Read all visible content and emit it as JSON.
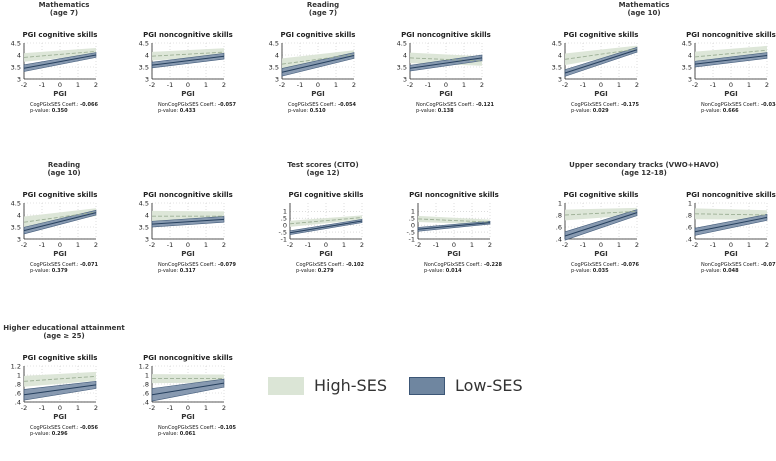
{
  "colors": {
    "high_band": "#dbe5d6",
    "high_line": "#9caf95",
    "low_band": "#8295ad",
    "low_edge": "#3c5676",
    "low_line": "#26405e",
    "grid": "#c8c8c8"
  },
  "legend": {
    "high": "High-SES",
    "low": "Low-SES"
  },
  "chart_data": [
    {
      "group_title": [
        "Mathematics",
        "(age 7)"
      ],
      "xlabel": "PGI",
      "ylim": [
        3,
        4.5
      ],
      "yticks": [
        "3",
        "3.5",
        "4",
        "4.5"
      ],
      "panels": [
        {
          "title": "PGI cognitive skills",
          "coef_label": "CogPGIxSES Coeff.: ",
          "coef": "-0.066",
          "pvalue_label": "p-value: ",
          "pvalue": "0.350",
          "high": {
            "y0": 3.9,
            "y1": 4.15,
            "w0": 0.18,
            "w1": 0.14
          },
          "low": {
            "y0": 3.45,
            "y1": 4.0,
            "w0": 0.14,
            "w1": 0.1
          }
        },
        {
          "title": "PGI noncognitive skills",
          "coef_label": "NonCogPGIxSES Coeff.: ",
          "coef": "-0.057",
          "pvalue_label": "p-value: ",
          "pvalue": "0.433",
          "high": {
            "y0": 3.95,
            "y1": 4.12,
            "w0": 0.18,
            "w1": 0.16
          },
          "low": {
            "y0": 3.58,
            "y1": 3.95,
            "w0": 0.12,
            "w1": 0.12
          }
        }
      ]
    },
    {
      "group_title": [
        "Reading",
        "(age 7)"
      ],
      "xlabel": "PGI",
      "ylim": [
        3,
        4.5
      ],
      "yticks": [
        "3",
        "3.5",
        "4",
        "4.5"
      ],
      "panels": [
        {
          "title": "PGI cognitive skills",
          "coef_label": "CogPGIxSES Coeff.: ",
          "coef": "-0.054",
          "pvalue_label": "p-value: ",
          "pvalue": "0.510",
          "high": {
            "y0": 3.62,
            "y1": 4.02,
            "w0": 0.24,
            "w1": 0.18
          },
          "low": {
            "y0": 3.28,
            "y1": 3.98,
            "w0": 0.16,
            "w1": 0.12
          }
        },
        {
          "title": "PGI noncognitive skills",
          "coef_label": "NonCogPGIxSES Coeff.: ",
          "coef": "-0.121",
          "pvalue_label": "p-value: ",
          "pvalue": "0.138",
          "high": {
            "y0": 3.88,
            "y1": 3.75,
            "w0": 0.22,
            "w1": 0.2
          },
          "low": {
            "y0": 3.45,
            "y1": 3.88,
            "w0": 0.12,
            "w1": 0.12
          }
        }
      ]
    },
    {
      "group_title": [
        "Mathematics",
        "(age 10)"
      ],
      "xlabel": "PGI",
      "ylim": [
        3,
        4.5
      ],
      "yticks": [
        "3",
        "3.5",
        "4",
        "4.5"
      ],
      "panels": [
        {
          "title": "PGI cognitive skills",
          "coef_label": "CogPGIxSES Coeff.: ",
          "coef": "-0.175",
          "pvalue_label": "p-value: ",
          "pvalue": "0.029",
          "high": {
            "y0": 3.82,
            "y1": 4.25,
            "w0": 0.24,
            "w1": 0.14
          },
          "low": {
            "y0": 3.25,
            "y1": 4.22,
            "w0": 0.14,
            "w1": 0.1
          }
        },
        {
          "title": "PGI noncognitive skills",
          "coef_label": "NonCogPGIxSES Coeff.: ",
          "coef": "-0.034",
          "pvalue_label": "p-value: ",
          "pvalue": "0.666",
          "high": {
            "y0": 3.92,
            "y1": 4.2,
            "w0": 0.22,
            "w1": 0.18
          },
          "low": {
            "y0": 3.62,
            "y1": 3.98,
            "w0": 0.12,
            "w1": 0.12
          }
        }
      ]
    },
    {
      "group_title": [
        "Reading",
        "(age 10)"
      ],
      "xlabel": "PGI",
      "ylim": [
        3,
        4.5
      ],
      "yticks": [
        "3",
        "3.5",
        "4",
        "4.5"
      ],
      "panels": [
        {
          "title": "PGI cognitive skills",
          "coef_label": "CogPGIxSES Coeff.: ",
          "coef": "-0.071",
          "pvalue_label": "p-value: ",
          "pvalue": "0.379",
          "high": {
            "y0": 3.7,
            "y1": 4.12,
            "w0": 0.24,
            "w1": 0.16
          },
          "low": {
            "y0": 3.35,
            "y1": 4.1,
            "w0": 0.14,
            "w1": 0.1
          }
        },
        {
          "title": "PGI noncognitive skills",
          "coef_label": "NonCogPGIxSES Coeff.: ",
          "coef": "-0.079",
          "pvalue_label": "p-value: ",
          "pvalue": "0.317",
          "high": {
            "y0": 3.95,
            "y1": 3.95,
            "w0": 0.22,
            "w1": 0.2
          },
          "low": {
            "y0": 3.62,
            "y1": 3.82,
            "w0": 0.12,
            "w1": 0.12
          }
        }
      ]
    },
    {
      "group_title": [
        "Test scores (CITO)",
        "(age 12)"
      ],
      "xlabel": "PGI",
      "ylim": [
        -1,
        0.5
      ],
      "yticks": [
        "-1",
        "-.5",
        "0",
        ".5",
        "1"
      ],
      "ytick_values": [
        -1,
        -0.5,
        0,
        0.5,
        1
      ],
      "yrange": [
        -1,
        1.6
      ],
      "panels": [
        {
          "title": "PGI cognitive skills",
          "coef_label": "CogPGIxSES Coeff.: ",
          "coef": "-0.102",
          "pvalue_label": "p-value: ",
          "pvalue": "0.279",
          "high": {
            "y0": 0.1,
            "y1": 0.55,
            "w0": 0.22,
            "w1": 0.16
          },
          "low": {
            "y0": -0.55,
            "y1": 0.3,
            "w0": 0.14,
            "w1": 0.12
          }
        },
        {
          "title": "PGI noncognitive skills",
          "coef_label": "NonCogPGIxSES Coeff.: ",
          "coef": "-0.228",
          "pvalue_label": "p-value: ",
          "pvalue": "0.014",
          "high": {
            "y0": 0.45,
            "y1": 0.22,
            "w0": 0.22,
            "w1": 0.18
          },
          "low": {
            "y0": -0.3,
            "y1": 0.18,
            "w0": 0.14,
            "w1": 0.1
          }
        }
      ]
    },
    {
      "group_title": [
        "Upper secondary tracks (VWO+HAVO)",
        "(age 12-18)"
      ],
      "xlabel": "PGI",
      "ylim": [
        0.4,
        1
      ],
      "yticks": [
        ".4",
        ".6",
        ".8",
        "1"
      ],
      "panels": [
        {
          "title": "PGI cognitive skills",
          "coef_label": "CogPGIxSES Coeff.: ",
          "coef": "-0.076",
          "pvalue_label": "p-value: ",
          "pvalue": "0.035",
          "high": {
            "y0": 0.8,
            "y1": 0.86,
            "w0": 0.09,
            "w1": 0.06
          },
          "low": {
            "y0": 0.45,
            "y1": 0.84,
            "w0": 0.07,
            "w1": 0.05
          }
        },
        {
          "title": "PGI noncognitive skills",
          "coef_label": "NonCogPGIxSES Coeff.: ",
          "coef": "-0.077",
          "pvalue_label": "p-value: ",
          "pvalue": "0.048",
          "high": {
            "y0": 0.82,
            "y1": 0.8,
            "w0": 0.09,
            "w1": 0.08
          },
          "low": {
            "y0": 0.52,
            "y1": 0.76,
            "w0": 0.06,
            "w1": 0.05
          }
        }
      ]
    },
    {
      "group_title": [
        "Higher educational attainment",
        "(age ≥ 25)"
      ],
      "xlabel": "PGI",
      "ylim": [
        0.4,
        1.2
      ],
      "yticks": [
        ".4",
        ".6",
        ".8",
        "1",
        "1.2"
      ],
      "panels": [
        {
          "title": "PGI cognitive skills",
          "coef_label": "CogPGIxSES Coeff.: ",
          "coef": "-0.056",
          "pvalue_label": "p-value: ",
          "pvalue": "0.296",
          "high": {
            "y0": 0.86,
            "y1": 0.97,
            "w0": 0.12,
            "w1": 0.1
          },
          "low": {
            "y0": 0.56,
            "y1": 0.78,
            "w0": 0.12,
            "w1": 0.08
          }
        },
        {
          "title": "PGI noncognitive skills",
          "coef_label": "NonCogPGIxSES Coeff.: ",
          "coef": "-0.105",
          "pvalue_label": "p-value: ",
          "pvalue": "0.061",
          "high": {
            "y0": 0.92,
            "y1": 0.92,
            "w0": 0.1,
            "w1": 0.09
          },
          "low": {
            "y0": 0.56,
            "y1": 0.82,
            "w0": 0.14,
            "w1": 0.09
          }
        }
      ]
    }
  ],
  "xticks": [
    "-2",
    "-1",
    "0",
    "1",
    "2"
  ]
}
